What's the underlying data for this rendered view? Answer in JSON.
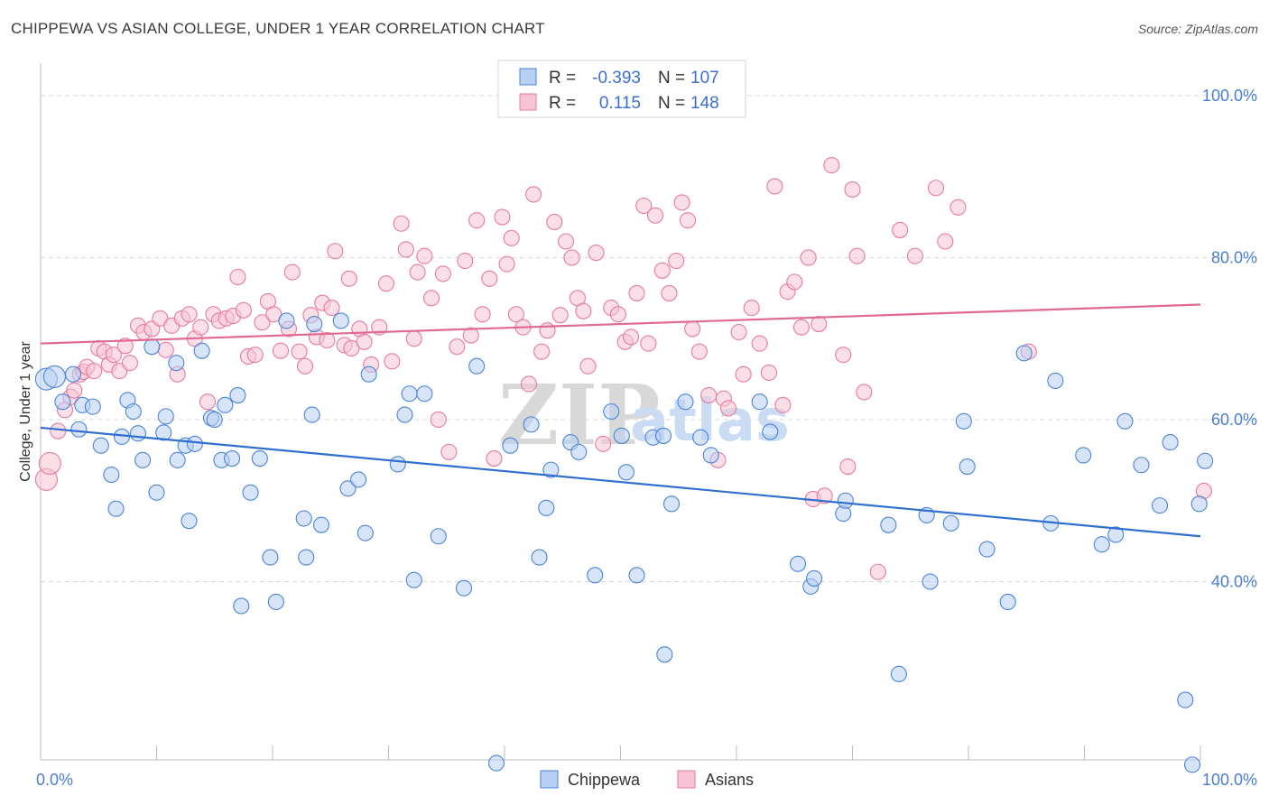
{
  "title": "CHIPPEWA VS ASIAN COLLEGE, UNDER 1 YEAR CORRELATION CHART",
  "source": "Source: ZipAtlas.com",
  "watermark": {
    "zip": "ZIP",
    "atlas": "atlas"
  },
  "colors": {
    "chippewa": "#4a84d8",
    "chippewa_fill": "#b8d0f2",
    "asians": "#e77aa0",
    "asians_fill": "#f6c4d4",
    "trend_chippewa": "#2f6fd0",
    "trend_asians": "#e06a93",
    "tick": "#4a7fd0",
    "grid": "#d9d9d9"
  },
  "legend": {
    "rows": [
      {
        "series": "chippewa",
        "r_label": "R =",
        "r_value": "-0.393",
        "n_label": "N =",
        "n_value": "107"
      },
      {
        "series": "asians",
        "r_label": "R =",
        "r_value": "0.115",
        "n_label": "N =",
        "n_value": "148"
      }
    ]
  },
  "bottom_legend": [
    {
      "series": "chippewa",
      "label": "Chippewa"
    },
    {
      "series": "asians",
      "label": "Asians"
    }
  ],
  "chart_data": {
    "type": "scatter",
    "xlabel": "",
    "ylabel": "College, Under 1 year",
    "xlim": [
      0,
      100
    ],
    "ylim": [
      18,
      104
    ],
    "x_tick_labels": [
      {
        "value": 0,
        "label": "0.0%"
      },
      {
        "value": 100,
        "label": "100.0%"
      }
    ],
    "y_tick_labels": [
      {
        "value": 40,
        "label": "40.0%"
      },
      {
        "value": 60,
        "label": "60.0%"
      },
      {
        "value": 80,
        "label": "80.0%"
      },
      {
        "value": 100,
        "label": "100.0%"
      }
    ],
    "grid": true,
    "legend_position": "top-center",
    "series": [
      {
        "name": "Chippewa",
        "key": "chippewa",
        "trend": {
          "x": [
            0,
            100
          ],
          "y": [
            59.0,
            45.6
          ]
        },
        "points": [
          [
            0.5,
            65.0
          ],
          [
            1.2,
            65.3
          ],
          [
            2.8,
            65.6
          ],
          [
            1.9,
            62.2
          ],
          [
            3.6,
            61.8
          ],
          [
            4.5,
            61.6
          ],
          [
            3.3,
            58.8
          ],
          [
            5.2,
            56.8
          ],
          [
            6.1,
            53.2
          ],
          [
            6.5,
            49.0
          ],
          [
            7.0,
            57.9
          ],
          [
            7.5,
            62.4
          ],
          [
            8.0,
            61.0
          ],
          [
            8.4,
            58.3
          ],
          [
            8.8,
            55.0
          ],
          [
            9.6,
            69.0
          ],
          [
            10.0,
            51.0
          ],
          [
            10.6,
            58.4
          ],
          [
            10.8,
            60.4
          ],
          [
            11.8,
            55.0
          ],
          [
            11.7,
            67.0
          ],
          [
            12.5,
            56.8
          ],
          [
            12.8,
            47.5
          ],
          [
            13.3,
            57.0
          ],
          [
            13.9,
            68.5
          ],
          [
            14.7,
            60.2
          ],
          [
            15.0,
            60.0
          ],
          [
            15.6,
            55.0
          ],
          [
            15.9,
            61.8
          ],
          [
            16.5,
            55.2
          ],
          [
            17.0,
            63.0
          ],
          [
            17.3,
            37.0
          ],
          [
            18.1,
            51.0
          ],
          [
            18.9,
            55.2
          ],
          [
            19.8,
            43.0
          ],
          [
            20.3,
            37.5
          ],
          [
            21.2,
            72.2
          ],
          [
            22.7,
            47.8
          ],
          [
            22.9,
            43.0
          ],
          [
            23.4,
            60.6
          ],
          [
            23.6,
            71.8
          ],
          [
            24.2,
            47.0
          ],
          [
            25.9,
            72.2
          ],
          [
            26.5,
            51.5
          ],
          [
            27.4,
            52.6
          ],
          [
            28.0,
            46.0
          ],
          [
            28.3,
            65.6
          ],
          [
            30.8,
            54.5
          ],
          [
            31.4,
            60.6
          ],
          [
            31.8,
            63.2
          ],
          [
            32.2,
            40.2
          ],
          [
            33.1,
            63.2
          ],
          [
            34.3,
            45.6
          ],
          [
            36.5,
            39.2
          ],
          [
            37.6,
            66.6
          ],
          [
            39.3,
            17.6
          ],
          [
            40.5,
            56.8
          ],
          [
            42.3,
            59.4
          ],
          [
            43.0,
            43.0
          ],
          [
            43.6,
            49.1
          ],
          [
            44.0,
            53.8
          ],
          [
            45.7,
            57.2
          ],
          [
            46.4,
            56.0
          ],
          [
            47.8,
            40.8
          ],
          [
            49.2,
            61.0
          ],
          [
            50.1,
            58.0
          ],
          [
            50.5,
            53.5
          ],
          [
            51.4,
            40.8
          ],
          [
            52.8,
            57.8
          ],
          [
            53.7,
            58.0
          ],
          [
            53.8,
            31.0
          ],
          [
            54.4,
            49.6
          ],
          [
            55.6,
            62.2
          ],
          [
            56.9,
            57.8
          ],
          [
            57.8,
            55.6
          ],
          [
            62.0,
            62.2
          ],
          [
            62.9,
            58.5
          ],
          [
            65.3,
            42.2
          ],
          [
            66.4,
            39.4
          ],
          [
            66.7,
            40.4
          ],
          [
            69.2,
            48.4
          ],
          [
            69.4,
            50.0
          ],
          [
            73.1,
            47.0
          ],
          [
            74.0,
            28.6
          ],
          [
            76.4,
            48.2
          ],
          [
            76.7,
            40.0
          ],
          [
            78.5,
            47.2
          ],
          [
            79.6,
            59.8
          ],
          [
            79.9,
            54.2
          ],
          [
            81.6,
            44.0
          ],
          [
            83.4,
            37.5
          ],
          [
            84.8,
            68.2
          ],
          [
            87.1,
            47.2
          ],
          [
            87.5,
            64.8
          ],
          [
            89.9,
            55.6
          ],
          [
            91.5,
            44.6
          ],
          [
            92.7,
            45.8
          ],
          [
            93.5,
            59.8
          ],
          [
            94.9,
            54.4
          ],
          [
            96.5,
            49.4
          ],
          [
            97.4,
            57.2
          ],
          [
            98.7,
            25.4
          ],
          [
            99.3,
            17.4
          ],
          [
            100.4,
            54.9
          ],
          [
            99.9,
            49.6
          ]
        ]
      },
      {
        "name": "Asians",
        "key": "asians",
        "trend": {
          "x": [
            0,
            100
          ],
          "y": [
            69.4,
            74.2
          ]
        },
        "points": [
          [
            0.5,
            52.6
          ],
          [
            0.8,
            54.6
          ],
          [
            1.5,
            58.6
          ],
          [
            2.1,
            61.2
          ],
          [
            2.6,
            62.8
          ],
          [
            2.9,
            63.6
          ],
          [
            3.4,
            65.6
          ],
          [
            3.7,
            65.9
          ],
          [
            4.0,
            66.5
          ],
          [
            4.6,
            66.0
          ],
          [
            5.0,
            68.8
          ],
          [
            5.5,
            68.4
          ],
          [
            5.9,
            66.8
          ],
          [
            6.3,
            68.0
          ],
          [
            6.8,
            66.0
          ],
          [
            7.3,
            69.1
          ],
          [
            7.7,
            67.0
          ],
          [
            8.4,
            71.6
          ],
          [
            8.9,
            70.8
          ],
          [
            9.6,
            71.2
          ],
          [
            10.3,
            72.5
          ],
          [
            10.8,
            68.6
          ],
          [
            11.3,
            71.6
          ],
          [
            11.8,
            65.6
          ],
          [
            12.2,
            72.5
          ],
          [
            12.8,
            73.0
          ],
          [
            13.3,
            70.0
          ],
          [
            13.8,
            71.4
          ],
          [
            14.4,
            62.2
          ],
          [
            14.9,
            73.0
          ],
          [
            15.4,
            72.2
          ],
          [
            16.0,
            72.5
          ],
          [
            16.6,
            72.8
          ],
          [
            17.0,
            77.6
          ],
          [
            17.5,
            73.5
          ],
          [
            17.9,
            67.8
          ],
          [
            18.5,
            68.0
          ],
          [
            19.1,
            72.0
          ],
          [
            19.6,
            74.6
          ],
          [
            20.1,
            73.0
          ],
          [
            20.7,
            68.5
          ],
          [
            21.4,
            71.2
          ],
          [
            21.7,
            78.2
          ],
          [
            22.3,
            68.4
          ],
          [
            22.8,
            66.6
          ],
          [
            23.3,
            72.9
          ],
          [
            23.8,
            70.2
          ],
          [
            24.3,
            74.4
          ],
          [
            24.7,
            69.8
          ],
          [
            25.1,
            73.8
          ],
          [
            25.4,
            80.8
          ],
          [
            26.2,
            69.2
          ],
          [
            26.6,
            77.4
          ],
          [
            26.8,
            68.8
          ],
          [
            27.5,
            71.2
          ],
          [
            27.9,
            69.6
          ],
          [
            28.5,
            66.8
          ],
          [
            29.2,
            71.4
          ],
          [
            29.8,
            76.8
          ],
          [
            30.3,
            67.2
          ],
          [
            31.1,
            84.2
          ],
          [
            31.5,
            81.0
          ],
          [
            32.2,
            70.0
          ],
          [
            32.5,
            78.2
          ],
          [
            33.1,
            80.2
          ],
          [
            33.7,
            75.0
          ],
          [
            34.3,
            60.0
          ],
          [
            34.7,
            78.0
          ],
          [
            35.2,
            56.0
          ],
          [
            35.9,
            69.0
          ],
          [
            36.6,
            79.6
          ],
          [
            37.1,
            70.4
          ],
          [
            37.6,
            84.6
          ],
          [
            38.1,
            73.0
          ],
          [
            38.7,
            77.4
          ],
          [
            39.1,
            55.2
          ],
          [
            39.8,
            85.0
          ],
          [
            40.2,
            79.2
          ],
          [
            40.6,
            82.4
          ],
          [
            41.0,
            73.0
          ],
          [
            41.6,
            71.4
          ],
          [
            42.1,
            64.4
          ],
          [
            42.5,
            87.8
          ],
          [
            43.2,
            68.4
          ],
          [
            43.7,
            71.0
          ],
          [
            44.3,
            84.4
          ],
          [
            44.8,
            72.9
          ],
          [
            45.3,
            82.0
          ],
          [
            45.8,
            80.0
          ],
          [
            46.3,
            75.0
          ],
          [
            46.8,
            73.4
          ],
          [
            47.2,
            66.6
          ],
          [
            47.9,
            80.6
          ],
          [
            48.5,
            57.0
          ],
          [
            49.2,
            73.8
          ],
          [
            49.8,
            73.0
          ],
          [
            50.4,
            69.6
          ],
          [
            50.9,
            70.2
          ],
          [
            51.4,
            75.6
          ],
          [
            52.0,
            86.4
          ],
          [
            52.4,
            69.4
          ],
          [
            53.0,
            85.2
          ],
          [
            53.6,
            78.4
          ],
          [
            54.2,
            75.6
          ],
          [
            54.8,
            79.6
          ],
          [
            55.3,
            86.8
          ],
          [
            55.8,
            84.6
          ],
          [
            56.2,
            71.2
          ],
          [
            56.8,
            68.4
          ],
          [
            57.6,
            63.0
          ],
          [
            58.4,
            55.0
          ],
          [
            58.9,
            62.6
          ],
          [
            59.3,
            61.4
          ],
          [
            60.2,
            70.8
          ],
          [
            60.6,
            65.6
          ],
          [
            61.3,
            73.8
          ],
          [
            62.0,
            69.4
          ],
          [
            62.8,
            65.8
          ],
          [
            63.3,
            88.8
          ],
          [
            64.0,
            61.8
          ],
          [
            64.4,
            75.8
          ],
          [
            65.0,
            77.0
          ],
          [
            65.6,
            71.4
          ],
          [
            66.2,
            80.0
          ],
          [
            66.6,
            50.2
          ],
          [
            67.1,
            71.8
          ],
          [
            67.6,
            50.6
          ],
          [
            68.2,
            91.4
          ],
          [
            69.2,
            68.0
          ],
          [
            69.6,
            54.2
          ],
          [
            70.0,
            88.4
          ],
          [
            70.4,
            80.2
          ],
          [
            71.0,
            63.4
          ],
          [
            72.2,
            41.2
          ],
          [
            74.1,
            83.4
          ],
          [
            75.4,
            80.2
          ],
          [
            77.2,
            88.6
          ],
          [
            78.0,
            82.0
          ],
          [
            79.1,
            86.2
          ],
          [
            85.2,
            68.4
          ],
          [
            100.3,
            51.2
          ]
        ]
      }
    ]
  }
}
